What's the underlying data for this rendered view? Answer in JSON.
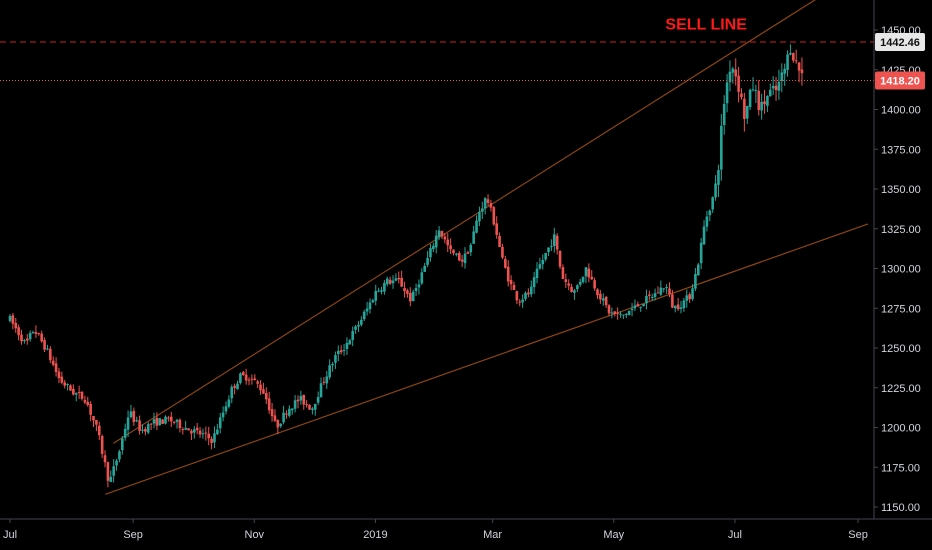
{
  "chart_data": {
    "type": "candlestick",
    "theme": {
      "background": "#000000",
      "up_color": "#26a69a",
      "down_color": "#ef5350",
      "trendline_color": "#8b4513",
      "sell_line_color": "#cc1f1f",
      "current_price_color": "#ef5350",
      "axis_text_color": "#d1d4dc"
    },
    "y_axis": {
      "range": [
        1147,
        1455
      ],
      "ticks": [
        "1150.00",
        "1175.00",
        "1200.00",
        "1225.00",
        "1250.00",
        "1275.00",
        "1300.00",
        "1325.00",
        "1350.00",
        "1375.00",
        "1400.00",
        "1425.00",
        "1450.00"
      ],
      "tick_values": [
        1150,
        1175,
        1200,
        1225,
        1250,
        1275,
        1300,
        1325,
        1350,
        1375,
        1400,
        1425,
        1450
      ]
    },
    "x_axis": {
      "range_days": [
        0,
        432
      ],
      "labels": [
        {
          "label": "Jul",
          "day": 0
        },
        {
          "label": "Sep",
          "day": 62
        },
        {
          "label": "Nov",
          "day": 123
        },
        {
          "label": "2019",
          "day": 184
        },
        {
          "label": "Mar",
          "day": 243
        },
        {
          "label": "May",
          "day": 304
        },
        {
          "label": "Jul",
          "day": 365
        },
        {
          "label": "Sep",
          "day": 427
        }
      ]
    },
    "price_path": [
      [
        0,
        1268
      ],
      [
        8,
        1252
      ],
      [
        12,
        1262
      ],
      [
        18,
        1250
      ],
      [
        25,
        1230
      ],
      [
        32,
        1222
      ],
      [
        38,
        1218
      ],
      [
        44,
        1198
      ],
      [
        50,
        1165
      ],
      [
        55,
        1185
      ],
      [
        60,
        1210
      ],
      [
        66,
        1198
      ],
      [
        72,
        1203
      ],
      [
        80,
        1205
      ],
      [
        88,
        1200
      ],
      [
        96,
        1196
      ],
      [
        102,
        1192
      ],
      [
        108,
        1212
      ],
      [
        112,
        1225
      ],
      [
        116,
        1232
      ],
      [
        120,
        1232
      ],
      [
        124,
        1228
      ],
      [
        128,
        1222
      ],
      [
        134,
        1200
      ],
      [
        140,
        1212
      ],
      [
        146,
        1218
      ],
      [
        152,
        1212
      ],
      [
        158,
        1230
      ],
      [
        164,
        1245
      ],
      [
        168,
        1250
      ],
      [
        174,
        1262
      ],
      [
        180,
        1275
      ],
      [
        184,
        1285
      ],
      [
        190,
        1292
      ],
      [
        196,
        1292
      ],
      [
        202,
        1280
      ],
      [
        210,
        1305
      ],
      [
        216,
        1325
      ],
      [
        222,
        1310
      ],
      [
        228,
        1305
      ],
      [
        232,
        1315
      ],
      [
        236,
        1335
      ],
      [
        240,
        1345
      ],
      [
        244,
        1328
      ],
      [
        248,
        1305
      ],
      [
        252,
        1290
      ],
      [
        256,
        1280
      ],
      [
        262,
        1285
      ],
      [
        266,
        1300
      ],
      [
        270,
        1310
      ],
      [
        274,
        1320
      ],
      [
        278,
        1295
      ],
      [
        284,
        1285
      ],
      [
        290,
        1300
      ],
      [
        296,
        1285
      ],
      [
        302,
        1272
      ],
      [
        308,
        1270
      ],
      [
        314,
        1275
      ],
      [
        320,
        1280
      ],
      [
        326,
        1285
      ],
      [
        330,
        1290
      ],
      [
        334,
        1275
      ],
      [
        338,
        1278
      ],
      [
        342,
        1282
      ],
      [
        346,
        1300
      ],
      [
        350,
        1330
      ],
      [
        354,
        1345
      ],
      [
        356,
        1355
      ],
      [
        358,
        1385
      ],
      [
        360,
        1410
      ],
      [
        363,
        1430
      ],
      [
        366,
        1420
      ],
      [
        370,
        1395
      ],
      [
        374,
        1415
      ],
      [
        378,
        1400
      ],
      [
        382,
        1410
      ],
      [
        386,
        1412
      ],
      [
        390,
        1425
      ],
      [
        393,
        1440
      ],
      [
        396,
        1428
      ],
      [
        400,
        1420
      ]
    ],
    "trendlines": [
      {
        "from": [
          48,
          1158
        ],
        "to": [
          432,
          1328
        ]
      },
      {
        "from": [
          52,
          1190
        ],
        "to": [
          432,
          1490
        ]
      }
    ],
    "horizontal_lines": [
      {
        "name": "sell-line",
        "value": 1442.46,
        "label": "1442.46",
        "style": "dashed"
      },
      {
        "name": "current-price",
        "value": 1418.2,
        "label": "1418.20",
        "style": "dotted"
      }
    ],
    "annotations": [
      {
        "text": "SELL LINE",
        "day": 330,
        "value": 1454
      }
    ]
  }
}
